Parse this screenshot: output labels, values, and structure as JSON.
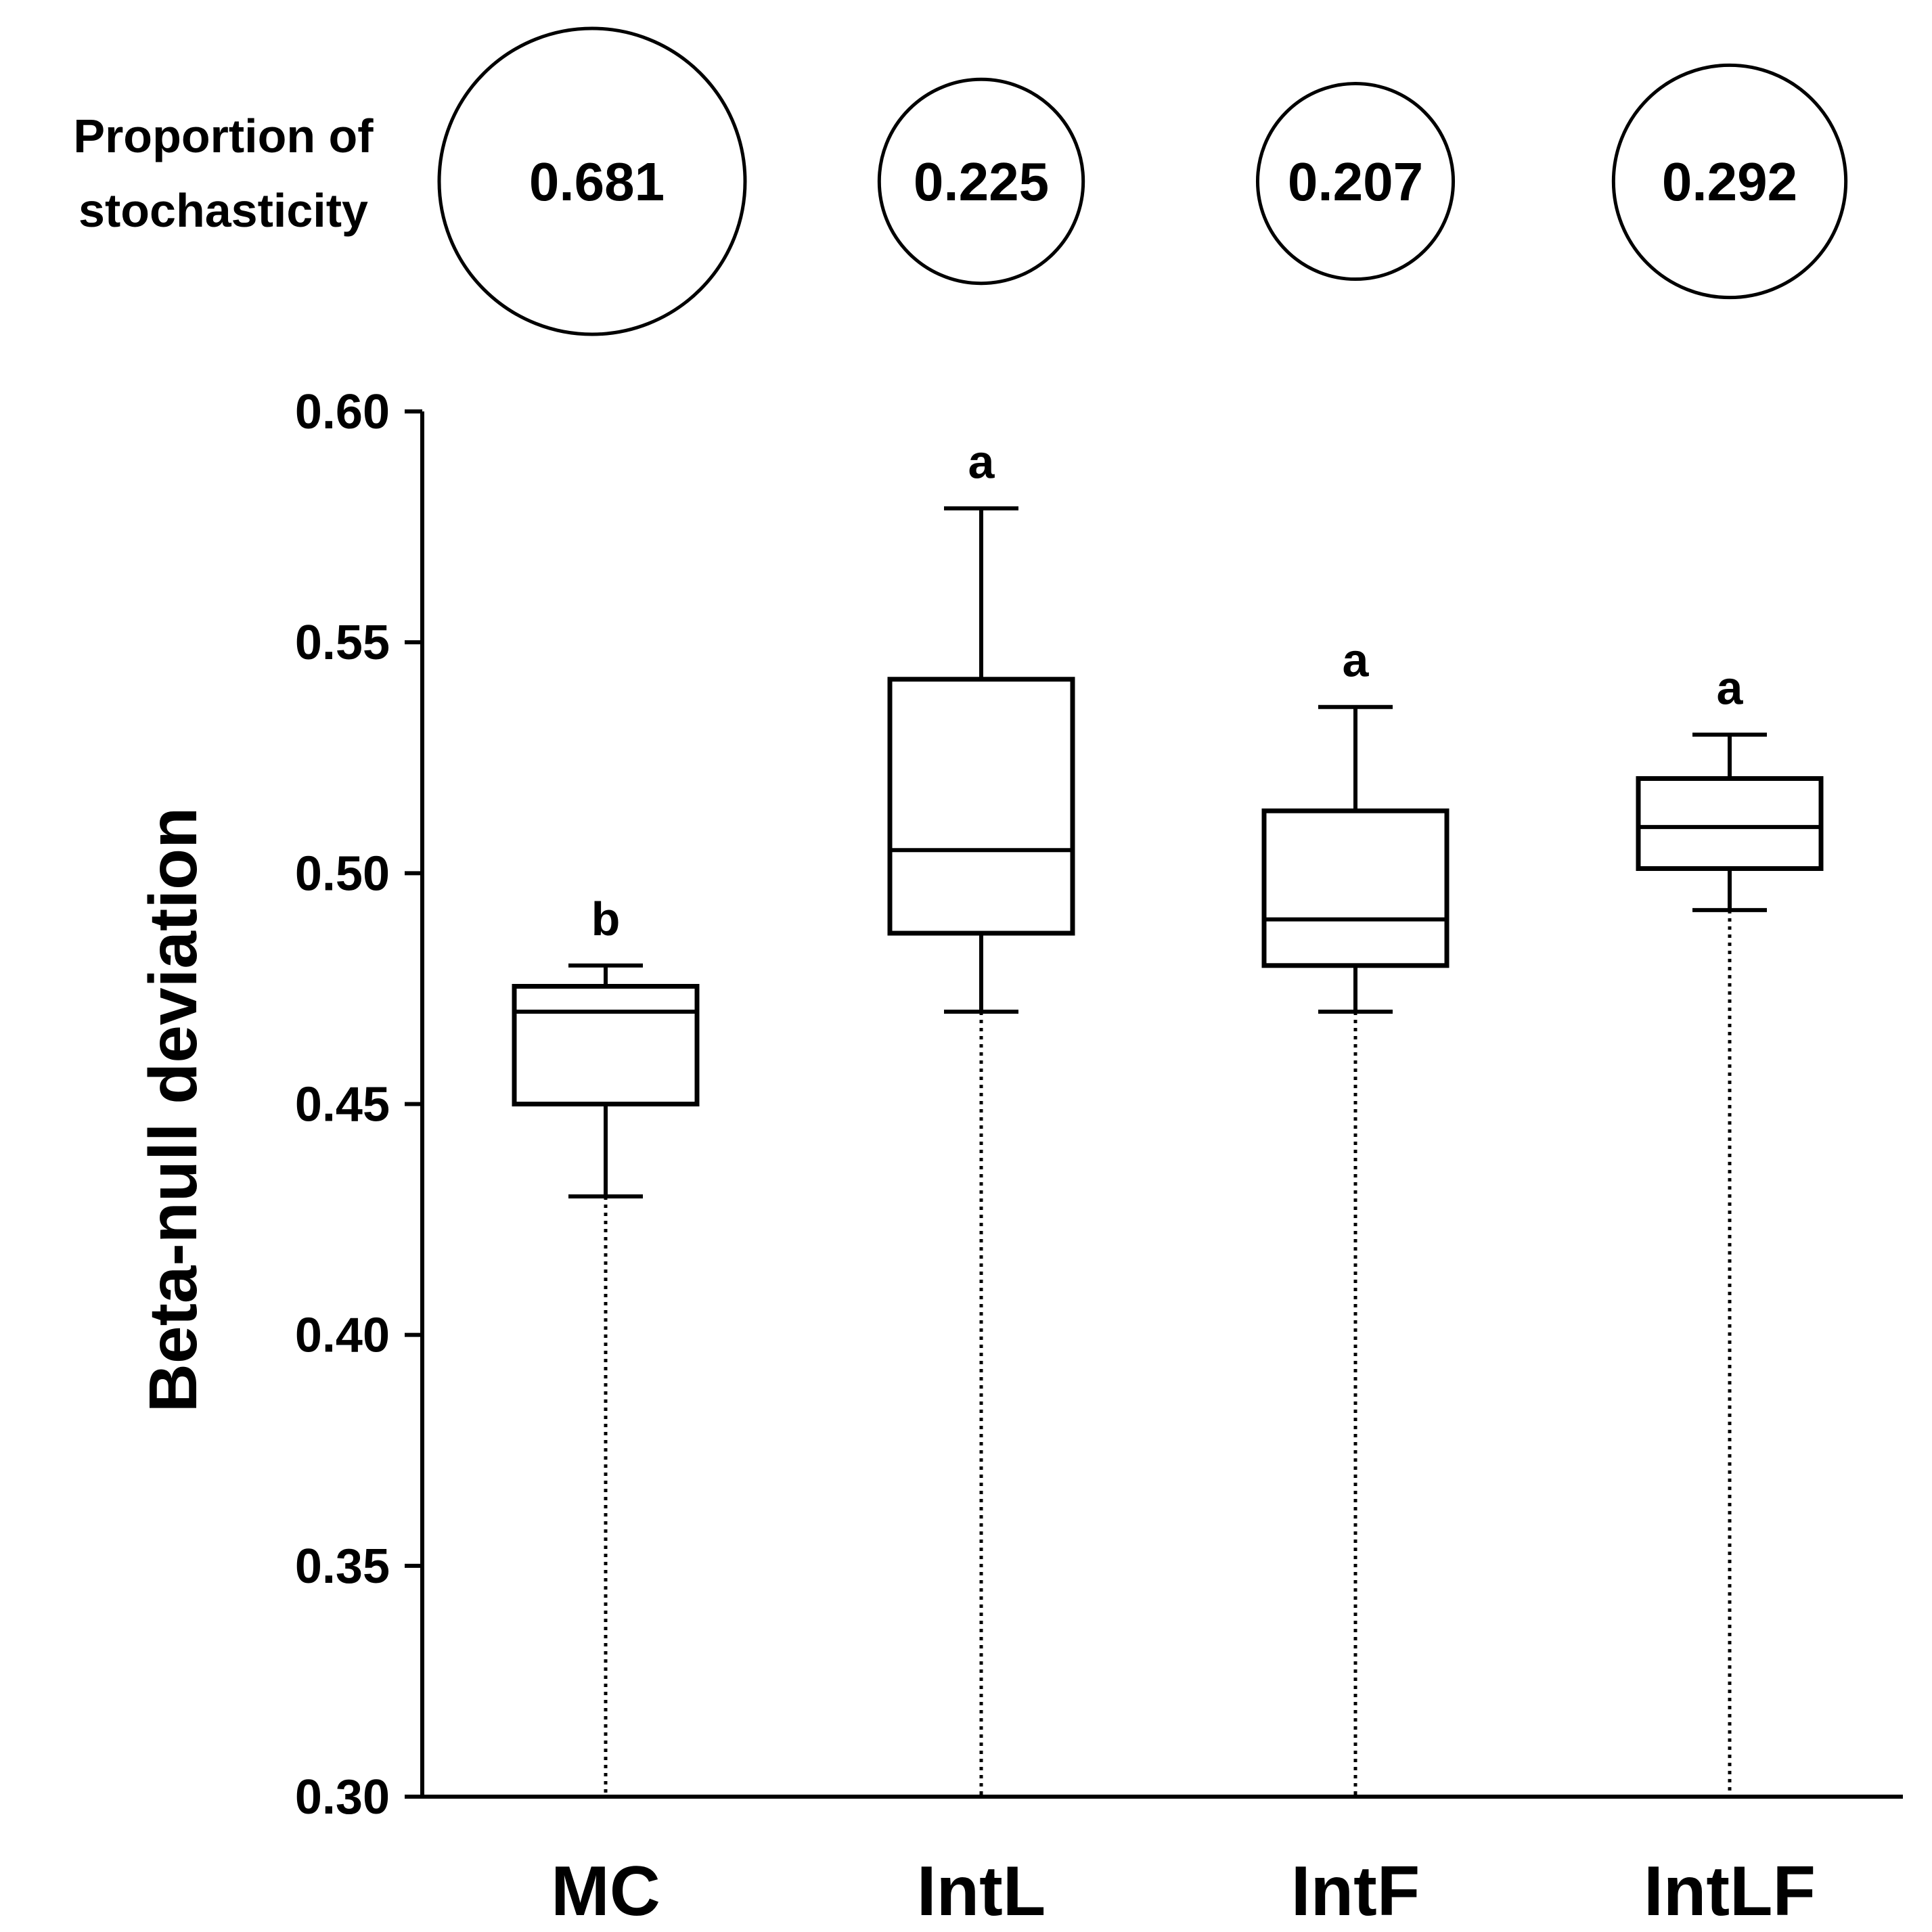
{
  "chart_data": {
    "type": "box",
    "title": "",
    "xlabel": "",
    "ylabel": "Beta-null deviation",
    "ylim": [
      0.3,
      0.6
    ],
    "yticks": [
      "0.30",
      "0.35",
      "0.40",
      "0.45",
      "0.50",
      "0.55",
      "0.60"
    ],
    "categories": [
      "MC",
      "IntL",
      "IntF",
      "IntLF"
    ],
    "boxes": [
      {
        "category": "MC",
        "min": 0.43,
        "q1": 0.45,
        "median": 0.47,
        "q3": 0.4755,
        "max": 0.48,
        "significance": "b"
      },
      {
        "category": "IntL",
        "min": 0.47,
        "q1": 0.487,
        "median": 0.505,
        "q3": 0.542,
        "max": 0.579,
        "significance": "a"
      },
      {
        "category": "IntF",
        "min": 0.47,
        "q1": 0.48,
        "median": 0.49,
        "q3": 0.5135,
        "max": 0.536,
        "significance": "a"
      },
      {
        "category": "IntLF",
        "min": 0.492,
        "q1": 0.501,
        "median": 0.51,
        "q3": 0.5205,
        "max": 0.53,
        "significance": "a"
      }
    ],
    "stochasticity": {
      "label_line1": "Proportion of",
      "label_line2": "stochasticity",
      "values": [
        "0.681",
        "0.225",
        "0.207",
        "0.292"
      ]
    }
  }
}
